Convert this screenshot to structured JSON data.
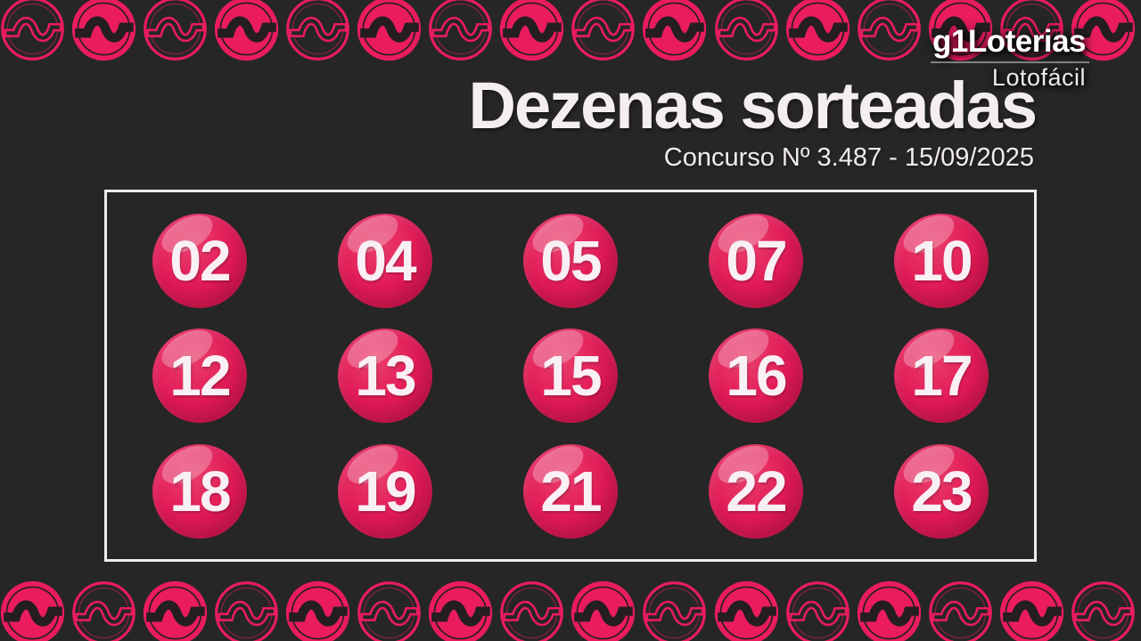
{
  "header": {
    "brand": "g1Loterias",
    "product": "Lotofácil"
  },
  "title": "Dezenas sorteadas",
  "subtitle": "Concurso Nº 3.487 - 15/09/2025",
  "numbers": [
    "02",
    "04",
    "05",
    "07",
    "10",
    "12",
    "13",
    "15",
    "16",
    "17",
    "18",
    "19",
    "21",
    "22",
    "23"
  ],
  "grid": {
    "columns": 5,
    "rows": 3
  },
  "colors": {
    "background": "#262626",
    "ball_pink": "#e31a57",
    "ball_highlight": "#ee6288",
    "coin_pink": "#ea1c5e",
    "coin_glyph_dark": "#241e20",
    "panel_border": "#ededed",
    "text_white": "#f4eef2"
  },
  "decor": {
    "coin_icon": "money-sign-icon",
    "coins_per_row": 16,
    "top_row_pattern_start": "outline",
    "bottom_row_pattern_start": "filled"
  }
}
